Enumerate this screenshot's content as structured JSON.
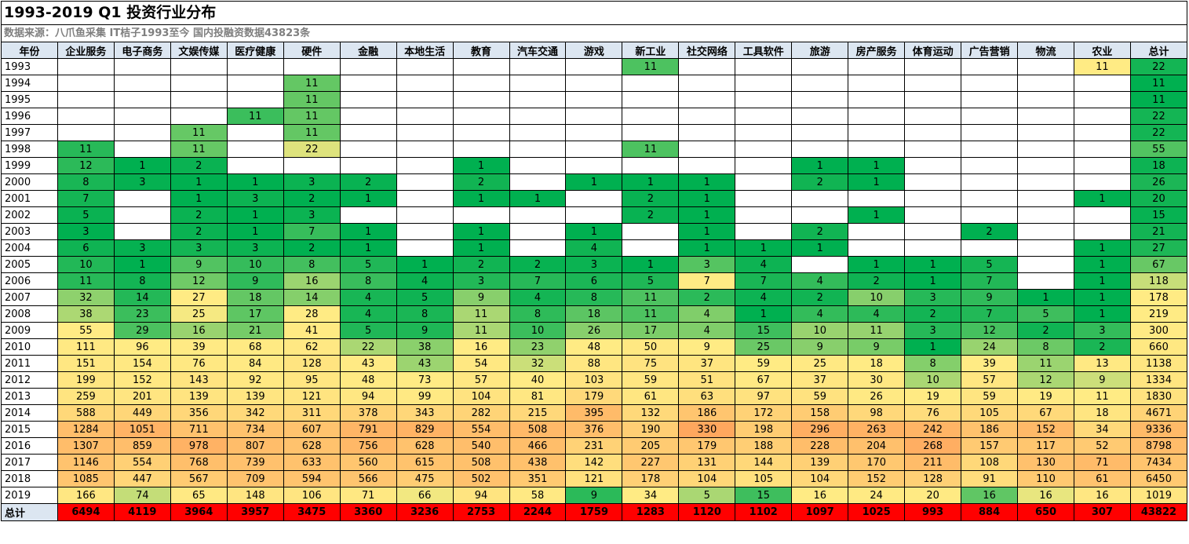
{
  "title": "1993-2019 Q1 投资行业分布",
  "source": "数据来源：八爪鱼采集 IT桔子1993至今 国内投融资数据43823条",
  "chart_data": {
    "type": "table",
    "color_scale": {
      "low": "#00b050",
      "mid": "#ffeb84",
      "high": "#ff0000"
    },
    "year_header": "年份",
    "total_label": "总计",
    "columns": [
      "企业服务",
      "电子商务",
      "文娱传媒",
      "医疗健康",
      "硬件",
      "金融",
      "本地生活",
      "教育",
      "汽车交通",
      "游戏",
      "新工业",
      "社交网络",
      "工具软件",
      "旅游",
      "房产服务",
      "体育运动",
      "广告营销",
      "物流",
      "农业",
      "总计"
    ],
    "rows": [
      {
        "year": "1993",
        "values": [
          null,
          null,
          null,
          null,
          null,
          null,
          null,
          null,
          null,
          null,
          11,
          null,
          null,
          null,
          null,
          null,
          null,
          null,
          11,
          22
        ]
      },
      {
        "year": "1994",
        "values": [
          null,
          null,
          null,
          null,
          11,
          null,
          null,
          null,
          null,
          null,
          null,
          null,
          null,
          null,
          null,
          null,
          null,
          null,
          null,
          11
        ]
      },
      {
        "year": "1995",
        "values": [
          null,
          null,
          null,
          null,
          11,
          null,
          null,
          null,
          null,
          null,
          null,
          null,
          null,
          null,
          null,
          null,
          null,
          null,
          null,
          11
        ]
      },
      {
        "year": "1996",
        "values": [
          null,
          null,
          null,
          11,
          11,
          null,
          null,
          null,
          null,
          null,
          null,
          null,
          null,
          null,
          null,
          null,
          null,
          null,
          null,
          22
        ]
      },
      {
        "year": "1997",
        "values": [
          null,
          null,
          11,
          null,
          11,
          null,
          null,
          null,
          null,
          null,
          null,
          null,
          null,
          null,
          null,
          null,
          null,
          null,
          null,
          22
        ]
      },
      {
        "year": "1998",
        "values": [
          11,
          null,
          11,
          null,
          22,
          null,
          null,
          null,
          null,
          null,
          11,
          null,
          null,
          null,
          null,
          null,
          null,
          null,
          null,
          55
        ]
      },
      {
        "year": "1999",
        "values": [
          12,
          1,
          2,
          null,
          null,
          null,
          null,
          1,
          null,
          null,
          null,
          null,
          null,
          1,
          1,
          null,
          null,
          null,
          null,
          18
        ]
      },
      {
        "year": "2000",
        "values": [
          8,
          3,
          1,
          1,
          3,
          2,
          null,
          2,
          null,
          1,
          1,
          1,
          null,
          2,
          1,
          null,
          null,
          null,
          null,
          26
        ]
      },
      {
        "year": "2001",
        "values": [
          7,
          null,
          1,
          3,
          2,
          1,
          null,
          1,
          1,
          null,
          2,
          1,
          null,
          null,
          null,
          null,
          null,
          null,
          1,
          20
        ]
      },
      {
        "year": "2002",
        "values": [
          5,
          null,
          2,
          1,
          3,
          null,
          null,
          null,
          null,
          null,
          2,
          1,
          null,
          null,
          1,
          null,
          null,
          null,
          null,
          15
        ]
      },
      {
        "year": "2003",
        "values": [
          3,
          null,
          2,
          1,
          7,
          1,
          null,
          1,
          null,
          1,
          null,
          1,
          null,
          2,
          null,
          null,
          2,
          null,
          null,
          21
        ]
      },
      {
        "year": "2004",
        "values": [
          6,
          3,
          3,
          3,
          2,
          1,
          null,
          1,
          null,
          4,
          null,
          1,
          1,
          1,
          null,
          null,
          null,
          null,
          1,
          27
        ]
      },
      {
        "year": "2005",
        "values": [
          10,
          1,
          9,
          10,
          8,
          5,
          1,
          2,
          2,
          3,
          1,
          3,
          4,
          null,
          1,
          1,
          5,
          null,
          1,
          67
        ]
      },
      {
        "year": "2006",
        "values": [
          11,
          8,
          12,
          9,
          16,
          8,
          4,
          3,
          7,
          6,
          5,
          7,
          7,
          4,
          2,
          1,
          7,
          null,
          1,
          118
        ]
      },
      {
        "year": "2007",
        "values": [
          32,
          14,
          27,
          18,
          14,
          4,
          5,
          9,
          4,
          8,
          11,
          2,
          4,
          2,
          10,
          3,
          9,
          1,
          1,
          178
        ]
      },
      {
        "year": "2008",
        "values": [
          38,
          23,
          25,
          17,
          28,
          4,
          8,
          11,
          8,
          18,
          11,
          4,
          1,
          4,
          4,
          2,
          7,
          5,
          1,
          219
        ]
      },
      {
        "year": "2009",
        "values": [
          55,
          29,
          16,
          21,
          41,
          5,
          9,
          11,
          10,
          26,
          17,
          4,
          15,
          10,
          11,
          3,
          12,
          2,
          3,
          300
        ]
      },
      {
        "year": "2010",
        "values": [
          111,
          96,
          39,
          68,
          62,
          22,
          38,
          16,
          23,
          48,
          50,
          9,
          25,
          9,
          9,
          1,
          24,
          8,
          2,
          660
        ]
      },
      {
        "year": "2011",
        "values": [
          151,
          154,
          76,
          84,
          128,
          43,
          43,
          54,
          32,
          88,
          75,
          37,
          59,
          25,
          18,
          8,
          39,
          11,
          13,
          1138
        ]
      },
      {
        "year": "2012",
        "values": [
          199,
          152,
          143,
          92,
          95,
          48,
          73,
          57,
          40,
          103,
          59,
          51,
          67,
          37,
          30,
          10,
          57,
          12,
          9,
          1334
        ]
      },
      {
        "year": "2013",
        "values": [
          259,
          201,
          139,
          139,
          121,
          94,
          99,
          104,
          81,
          179,
          61,
          63,
          97,
          59,
          26,
          19,
          59,
          19,
          11,
          1830
        ]
      },
      {
        "year": "2014",
        "values": [
          588,
          449,
          356,
          342,
          311,
          378,
          343,
          282,
          215,
          395,
          132,
          186,
          172,
          158,
          98,
          76,
          105,
          67,
          18,
          4671
        ]
      },
      {
        "year": "2015",
        "values": [
          1284,
          1051,
          711,
          734,
          607,
          791,
          829,
          554,
          508,
          376,
          190,
          330,
          198,
          296,
          263,
          242,
          186,
          152,
          34,
          9336
        ]
      },
      {
        "year": "2016",
        "values": [
          1307,
          859,
          978,
          807,
          628,
          756,
          628,
          540,
          466,
          231,
          205,
          179,
          188,
          228,
          204,
          268,
          157,
          117,
          52,
          8798
        ]
      },
      {
        "year": "2017",
        "values": [
          1146,
          554,
          768,
          739,
          633,
          560,
          615,
          508,
          438,
          142,
          227,
          131,
          144,
          139,
          170,
          211,
          108,
          130,
          71,
          7434
        ]
      },
      {
        "year": "2018",
        "values": [
          1085,
          447,
          567,
          709,
          594,
          566,
          475,
          502,
          351,
          121,
          178,
          104,
          105,
          104,
          152,
          128,
          91,
          110,
          61,
          6450
        ]
      },
      {
        "year": "2019",
        "values": [
          166,
          74,
          65,
          148,
          106,
          71,
          66,
          94,
          58,
          9,
          34,
          5,
          15,
          16,
          24,
          20,
          16,
          16,
          16,
          1019
        ]
      }
    ],
    "totals": [
      6494,
      4119,
      3964,
      3957,
      3475,
      3360,
      3236,
      2753,
      2244,
      1759,
      1283,
      1120,
      1102,
      1097,
      1025,
      993,
      884,
      650,
      307,
      43822
    ]
  }
}
